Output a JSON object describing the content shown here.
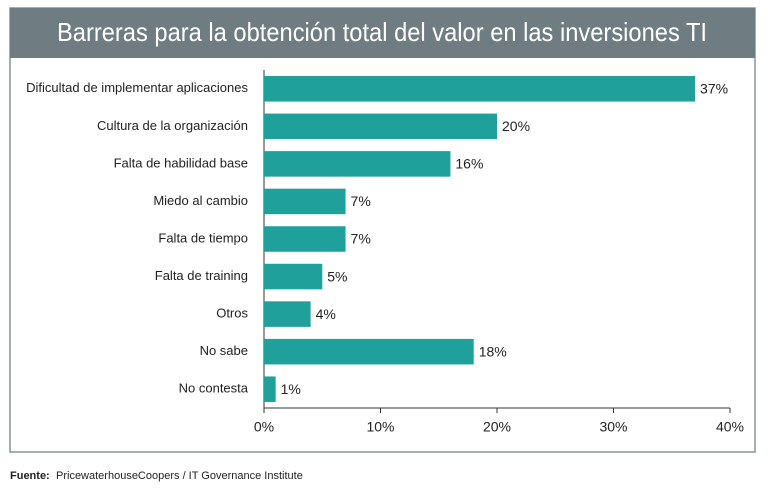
{
  "chart_data": {
    "type": "hbar",
    "title": "Barreras para la obtención total del valor en las inversiones TI",
    "categories": [
      "Dificultad de implementar aplicaciones",
      "Cultura de la organización",
      "Falta de habilidad base",
      "Miedo al cambio",
      "Falta de tiempo",
      "Falta de training",
      "Otros",
      "No sabe",
      "No contesta"
    ],
    "values": [
      37,
      20,
      16,
      7,
      7,
      5,
      4,
      18,
      1
    ],
    "value_labels": [
      "37%",
      "20%",
      "16%",
      "7%",
      "7%",
      "5%",
      "4%",
      "18%",
      "1%"
    ],
    "color": "#20a09a",
    "xlim": [
      0,
      40
    ],
    "xticks": [
      {
        "value": 0,
        "label": "0%"
      },
      {
        "value": 10,
        "label": "10%"
      },
      {
        "value": 20,
        "label": "20%"
      },
      {
        "value": 30,
        "label": "30%"
      },
      {
        "value": 40,
        "label": "40%"
      }
    ],
    "source_label": "Fuente:",
    "source": "PricewaterhouseCoopers / IT Governance Institute"
  }
}
